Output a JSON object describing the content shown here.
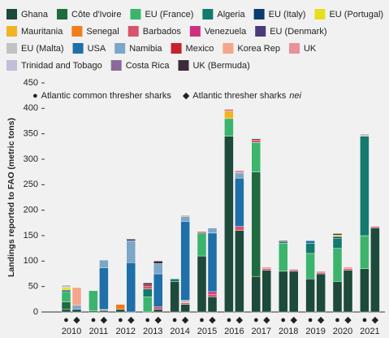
{
  "chart_data": {
    "type": "stacked_bar_pairs",
    "ylabel": "Landings reported to FAO (metric tons)",
    "categories": [
      "2010",
      "2011",
      "2012",
      "2013",
      "2014",
      "2015",
      "2016",
      "2017",
      "2018",
      "2019",
      "2020",
      "2021"
    ],
    "stacks": [
      {
        "symbol": "●",
        "name": "Atlantic common thresher sharks"
      },
      {
        "symbol": "◆",
        "name": "Atlantic thresher sharks",
        "qualifier": "nei"
      }
    ],
    "ylim": [
      0,
      450
    ],
    "yticks": [
      0,
      50,
      100,
      150,
      200,
      250,
      300,
      350,
      400,
      450
    ],
    "series": [
      {
        "name": "Ghana",
        "color": "#1d4a3a",
        "values": [
          [
            5,
            5
          ],
          [
            2,
            3
          ],
          [
            5,
            0
          ],
          [
            0,
            5
          ],
          [
            60,
            15
          ],
          [
            110,
            30
          ],
          [
            345,
            160
          ],
          [
            70,
            82
          ],
          [
            80,
            80
          ],
          [
            65,
            75
          ],
          [
            60,
            82
          ],
          [
            85,
            165
          ]
        ]
      },
      {
        "name": "Côte d'Ivoire",
        "color": "#1f6b40",
        "values": [
          [
            15,
            0
          ],
          [
            0,
            0
          ],
          [
            0,
            0
          ],
          [
            0,
            0
          ],
          [
            0,
            0
          ],
          [
            0,
            0
          ],
          [
            0,
            0
          ],
          [
            205,
            0
          ],
          [
            0,
            0
          ],
          [
            0,
            0
          ],
          [
            0,
            0
          ],
          [
            0,
            0
          ]
        ]
      },
      {
        "name": "EU (France)",
        "color": "#3db46d",
        "values": [
          [
            20,
            0
          ],
          [
            40,
            0
          ],
          [
            0,
            0
          ],
          [
            30,
            0
          ],
          [
            0,
            0
          ],
          [
            45,
            0
          ],
          [
            35,
            0
          ],
          [
            58,
            0
          ],
          [
            55,
            0
          ],
          [
            50,
            0
          ],
          [
            65,
            0
          ],
          [
            65,
            0
          ]
        ]
      },
      {
        "name": "Algeria",
        "color": "#137a6e",
        "values": [
          [
            0,
            0
          ],
          [
            0,
            0
          ],
          [
            0,
            0
          ],
          [
            15,
            0
          ],
          [
            5,
            0
          ],
          [
            0,
            0
          ],
          [
            0,
            0
          ],
          [
            0,
            0
          ],
          [
            3,
            0
          ],
          [
            20,
            0
          ],
          [
            20,
            0
          ],
          [
            195,
            0
          ]
        ]
      },
      {
        "name": "EU (Italy)",
        "color": "#0b3c6b",
        "values": [
          [
            3,
            0
          ],
          [
            0,
            0
          ],
          [
            0,
            0
          ],
          [
            0,
            0
          ],
          [
            0,
            0
          ],
          [
            0,
            0
          ],
          [
            0,
            0
          ],
          [
            0,
            0
          ],
          [
            0,
            0
          ],
          [
            0,
            0
          ],
          [
            3,
            0
          ],
          [
            0,
            0
          ]
        ]
      },
      {
        "name": "EU (Portugal)",
        "color": "#e6e01c",
        "values": [
          [
            5,
            0
          ],
          [
            0,
            0
          ],
          [
            0,
            0
          ],
          [
            0,
            0
          ],
          [
            0,
            0
          ],
          [
            0,
            0
          ],
          [
            0,
            0
          ],
          [
            0,
            0
          ],
          [
            0,
            0
          ],
          [
            0,
            0
          ],
          [
            3,
            0
          ],
          [
            0,
            0
          ]
        ]
      },
      {
        "name": "Mauritania",
        "color": "#f0b323",
        "values": [
          [
            0,
            0
          ],
          [
            0,
            0
          ],
          [
            0,
            0
          ],
          [
            0,
            0
          ],
          [
            0,
            0
          ],
          [
            0,
            0
          ],
          [
            15,
            0
          ],
          [
            0,
            0
          ],
          [
            0,
            0
          ],
          [
            0,
            0
          ],
          [
            0,
            0
          ],
          [
            0,
            0
          ]
        ]
      },
      {
        "name": "Senegal",
        "color": "#f07c1c",
        "values": [
          [
            0,
            0
          ],
          [
            0,
            0
          ],
          [
            10,
            0
          ],
          [
            0,
            0
          ],
          [
            0,
            0
          ],
          [
            0,
            0
          ],
          [
            0,
            0
          ],
          [
            0,
            0
          ],
          [
            0,
            0
          ],
          [
            0,
            0
          ],
          [
            0,
            0
          ],
          [
            0,
            0
          ]
        ]
      },
      {
        "name": "Barbados",
        "color": "#d9536b",
        "values": [
          [
            0,
            0
          ],
          [
            0,
            0
          ],
          [
            0,
            0
          ],
          [
            5,
            5
          ],
          [
            0,
            3
          ],
          [
            3,
            5
          ],
          [
            3,
            8
          ],
          [
            5,
            3
          ],
          [
            0,
            3
          ],
          [
            0,
            3
          ],
          [
            0,
            3
          ],
          [
            0,
            3
          ]
        ]
      },
      {
        "name": "Venezuela",
        "color": "#cf2f7f",
        "values": [
          [
            0,
            0
          ],
          [
            0,
            0
          ],
          [
            0,
            0
          ],
          [
            0,
            0
          ],
          [
            0,
            0
          ],
          [
            0,
            5
          ],
          [
            0,
            0
          ],
          [
            0,
            0
          ],
          [
            0,
            0
          ],
          [
            0,
            0
          ],
          [
            0,
            0
          ],
          [
            0,
            0
          ]
        ]
      },
      {
        "name": "EU (Denmark)",
        "color": "#4a3a7a",
        "values": [
          [
            0,
            0
          ],
          [
            0,
            0
          ],
          [
            0,
            0
          ],
          [
            0,
            0
          ],
          [
            0,
            0
          ],
          [
            0,
            0
          ],
          [
            0,
            0
          ],
          [
            0,
            0
          ],
          [
            0,
            0
          ],
          [
            0,
            0
          ],
          [
            0,
            0
          ],
          [
            0,
            0
          ]
        ]
      },
      {
        "name": "EU (Malta)",
        "color": "#c2c2c2",
        "values": [
          [
            5,
            0
          ],
          [
            0,
            2
          ],
          [
            0,
            0
          ],
          [
            0,
            0
          ],
          [
            0,
            5
          ],
          [
            0,
            0
          ],
          [
            0,
            0
          ],
          [
            0,
            0
          ],
          [
            0,
            2
          ],
          [
            0,
            0
          ],
          [
            0,
            0
          ],
          [
            5,
            0
          ]
        ]
      },
      {
        "name": "USA",
        "color": "#1f6fa8",
        "values": [
          [
            0,
            0
          ],
          [
            0,
            82
          ],
          [
            0,
            97
          ],
          [
            0,
            65
          ],
          [
            0,
            155
          ],
          [
            0,
            115
          ],
          [
            0,
            95
          ],
          [
            0,
            0
          ],
          [
            0,
            0
          ],
          [
            5,
            0
          ],
          [
            0,
            0
          ],
          [
            0,
            0
          ]
        ]
      },
      {
        "name": "Namibia",
        "color": "#7ba7c9",
        "values": [
          [
            0,
            8
          ],
          [
            0,
            15
          ],
          [
            0,
            43
          ],
          [
            0,
            20
          ],
          [
            0,
            10
          ],
          [
            0,
            10
          ],
          [
            0,
            10
          ],
          [
            0,
            0
          ],
          [
            0,
            0
          ],
          [
            0,
            0
          ],
          [
            0,
            0
          ],
          [
            0,
            0
          ]
        ]
      },
      {
        "name": "Mexico",
        "color": "#c8202f",
        "values": [
          [
            0,
            0
          ],
          [
            0,
            0
          ],
          [
            0,
            0
          ],
          [
            3,
            0
          ],
          [
            0,
            0
          ],
          [
            0,
            0
          ],
          [
            0,
            0
          ],
          [
            0,
            0
          ],
          [
            0,
            0
          ],
          [
            0,
            0
          ],
          [
            0,
            0
          ],
          [
            0,
            0
          ]
        ]
      },
      {
        "name": "Korea Rep",
        "color": "#f4a58a",
        "values": [
          [
            0,
            35
          ],
          [
            0,
            0
          ],
          [
            0,
            0
          ],
          [
            0,
            0
          ],
          [
            0,
            2
          ],
          [
            0,
            0
          ],
          [
            0,
            0
          ],
          [
            0,
            0
          ],
          [
            0,
            0
          ],
          [
            0,
            0
          ],
          [
            0,
            0
          ],
          [
            0,
            0
          ]
        ]
      },
      {
        "name": "UK",
        "color": "#e8909c",
        "values": [
          [
            0,
            0
          ],
          [
            0,
            0
          ],
          [
            0,
            0
          ],
          [
            0,
            0
          ],
          [
            0,
            0
          ],
          [
            0,
            0
          ],
          [
            0,
            5
          ],
          [
            0,
            3
          ],
          [
            0,
            0
          ],
          [
            0,
            2
          ],
          [
            0,
            3
          ],
          [
            0,
            0
          ]
        ]
      },
      {
        "name": "Trinidad and Tobago",
        "color": "#c4bcdc",
        "values": [
          [
            0,
            0
          ],
          [
            0,
            0
          ],
          [
            0,
            0
          ],
          [
            0,
            0
          ],
          [
            0,
            0
          ],
          [
            0,
            0
          ],
          [
            0,
            0
          ],
          [
            0,
            0
          ],
          [
            0,
            0
          ],
          [
            0,
            0
          ],
          [
            0,
            0
          ],
          [
            0,
            0
          ]
        ]
      },
      {
        "name": "Costa Rica",
        "color": "#8a6a9a",
        "values": [
          [
            0,
            0
          ],
          [
            0,
            0
          ],
          [
            0,
            0
          ],
          [
            0,
            0
          ],
          [
            0,
            0
          ],
          [
            0,
            0
          ],
          [
            0,
            0
          ],
          [
            0,
            0
          ],
          [
            0,
            0
          ],
          [
            0,
            0
          ],
          [
            0,
            0
          ],
          [
            0,
            0
          ]
        ]
      },
      {
        "name": "UK (Bermuda)",
        "color": "#3a2a3a",
        "values": [
          [
            0,
            0
          ],
          [
            0,
            0
          ],
          [
            0,
            3
          ],
          [
            4,
            5
          ],
          [
            0,
            0
          ],
          [
            0,
            0
          ],
          [
            0,
            0
          ],
          [
            2,
            0
          ],
          [
            2,
            0
          ],
          [
            0,
            0
          ],
          [
            3,
            0
          ],
          [
            0,
            0
          ]
        ]
      }
    ]
  }
}
